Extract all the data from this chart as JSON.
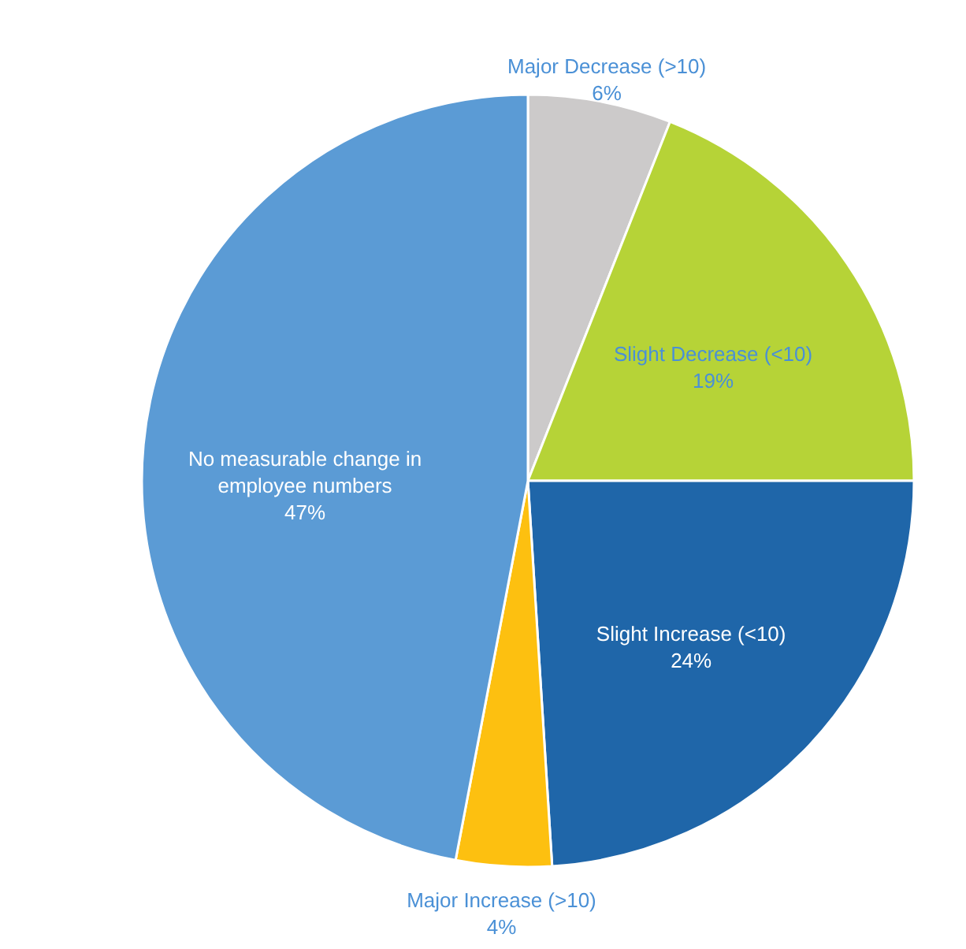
{
  "chart_data": {
    "type": "pie",
    "categories": [
      "Major Decrease (>10)",
      "Slight Decrease (<10)",
      "Slight Increase (<10)",
      "Major Increase (>10)",
      "No measurable change in employee numbers"
    ],
    "values": [
      6,
      19,
      24,
      4,
      47
    ],
    "value_labels": [
      "6%",
      "19%",
      "24%",
      "4%",
      "47%"
    ],
    "colors": [
      "#cccaca",
      "#b6d337",
      "#1f66a9",
      "#fdc010",
      "#5b9bd5"
    ]
  }
}
